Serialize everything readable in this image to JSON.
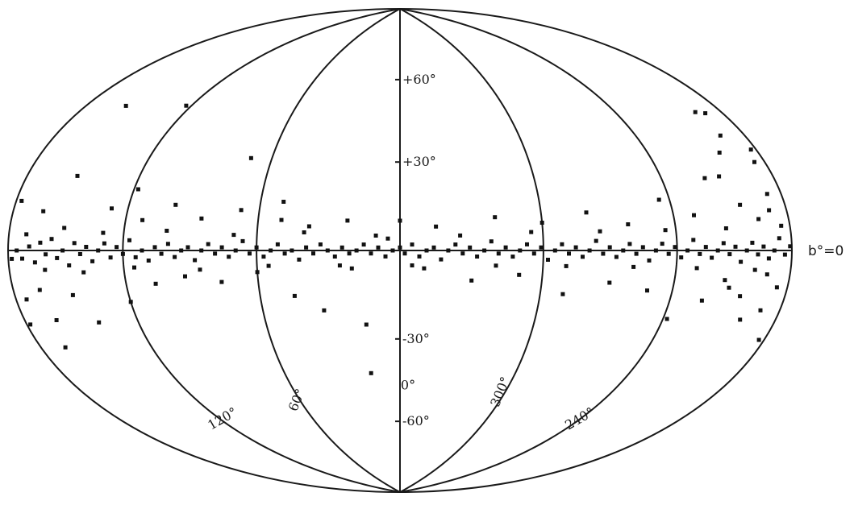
{
  "chart_data": {
    "type": "scatter",
    "projection": "aitoff-hammer",
    "title": "",
    "xlabel": "",
    "ylabel": "",
    "longitude_range": [
      0,
      360
    ],
    "latitude_range": [
      -90,
      90
    ],
    "grid": true,
    "equator_label": "b°=0",
    "latitude_ticks": [
      {
        "value": 60,
        "label": "+60°"
      },
      {
        "value": 30,
        "label": "+30°"
      },
      {
        "value": -30,
        "label": "-30°"
      },
      {
        "value": -60,
        "label": "-60°"
      }
    ],
    "longitude_ticks": [
      {
        "value": 0,
        "label": "0°"
      },
      {
        "value": 60,
        "label": "60°"
      },
      {
        "value": 120,
        "label": "120°"
      },
      {
        "value": 300,
        "label": "300°"
      },
      {
        "value": 240,
        "label": "240°"
      }
    ],
    "point_color": "#111111",
    "points": [
      [
        172,
        -2
      ],
      [
        168,
        1
      ],
      [
        165,
        -3
      ],
      [
        162,
        2
      ],
      [
        159,
        -1
      ],
      [
        156,
        3
      ],
      [
        153,
        -2
      ],
      [
        150,
        0
      ],
      [
        147,
        -4
      ],
      [
        144,
        2
      ],
      [
        141,
        -1
      ],
      [
        138,
        1
      ],
      [
        135,
        -3
      ],
      [
        132,
        0
      ],
      [
        129,
        2
      ],
      [
        126,
        -2
      ],
      [
        123,
        1
      ],
      [
        120,
        -1
      ],
      [
        117,
        3
      ],
      [
        114,
        -2
      ],
      [
        111,
        0
      ],
      [
        108,
        -3
      ],
      [
        105,
        1
      ],
      [
        102,
        -1
      ],
      [
        99,
        2
      ],
      [
        96,
        -2
      ],
      [
        93,
        0
      ],
      [
        90,
        1
      ],
      [
        87,
        -3
      ],
      [
        84,
        0
      ],
      [
        81,
        2
      ],
      [
        78,
        -1
      ],
      [
        75,
        1
      ],
      [
        72,
        -2
      ],
      [
        69,
        0
      ],
      [
        66,
        3
      ],
      [
        63,
        -1
      ],
      [
        60,
        1
      ],
      [
        57,
        -2
      ],
      [
        54,
        0
      ],
      [
        51,
        2
      ],
      [
        48,
        -1
      ],
      [
        45,
        0
      ],
      [
        42,
        -3
      ],
      [
        39,
        1
      ],
      [
        36,
        -1
      ],
      [
        33,
        2
      ],
      [
        30,
        0
      ],
      [
        27,
        -2
      ],
      [
        24,
        1
      ],
      [
        21,
        -1
      ],
      [
        18,
        0
      ],
      [
        15,
        2
      ],
      [
        12,
        -1
      ],
      [
        9,
        1
      ],
      [
        6,
        -2
      ],
      [
        3,
        0
      ],
      [
        0,
        1
      ],
      [
        358,
        -1
      ],
      [
        355,
        2
      ],
      [
        352,
        -2
      ],
      [
        349,
        0
      ],
      [
        346,
        1
      ],
      [
        343,
        -3
      ],
      [
        340,
        0
      ],
      [
        337,
        2
      ],
      [
        334,
        -1
      ],
      [
        331,
        1
      ],
      [
        328,
        -2
      ],
      [
        325,
        0
      ],
      [
        322,
        3
      ],
      [
        319,
        -1
      ],
      [
        316,
        1
      ],
      [
        313,
        -2
      ],
      [
        310,
        0
      ],
      [
        307,
        2
      ],
      [
        304,
        -1
      ],
      [
        301,
        1
      ],
      [
        298,
        -3
      ],
      [
        295,
        0
      ],
      [
        292,
        2
      ],
      [
        289,
        -1
      ],
      [
        286,
        1
      ],
      [
        283,
        -2
      ],
      [
        280,
        0
      ],
      [
        277,
        3
      ],
      [
        274,
        -1
      ],
      [
        271,
        1
      ],
      [
        268,
        -2
      ],
      [
        265,
        0
      ],
      [
        262,
        2
      ],
      [
        259,
        -1
      ],
      [
        256,
        1
      ],
      [
        253,
        -3
      ],
      [
        250,
        0
      ],
      [
        247,
        2
      ],
      [
        244,
        -1
      ],
      [
        241,
        1
      ],
      [
        238,
        -2
      ],
      [
        235,
        0
      ],
      [
        232,
        3
      ],
      [
        229,
        -1
      ],
      [
        226,
        1
      ],
      [
        223,
        -2
      ],
      [
        220,
        0
      ],
      [
        217,
        2
      ],
      [
        214,
        -1
      ],
      [
        211,
        1
      ],
      [
        208,
        -3
      ],
      [
        205,
        0
      ],
      [
        202,
        2
      ],
      [
        199,
        -1
      ],
      [
        196,
        1
      ],
      [
        193,
        -2
      ],
      [
        190,
        0
      ],
      [
        187,
        3
      ],
      [
        184,
        -1
      ],
      [
        181,
        1
      ],
      [
        178,
        -2
      ],
      [
        175,
        0
      ],
      [
        170,
        4
      ],
      [
        160,
        -5
      ],
      [
        150,
        6
      ],
      [
        140,
        -6
      ],
      [
        130,
        5
      ],
      [
        115,
        -5
      ],
      [
        100,
        6
      ],
      [
        85,
        -6
      ],
      [
        70,
        5
      ],
      [
        55,
        -5
      ],
      [
        40,
        6
      ],
      [
        25,
        -5
      ],
      [
        10,
        5
      ],
      [
        350,
        -6
      ],
      [
        335,
        5
      ],
      [
        320,
        -5
      ],
      [
        305,
        6
      ],
      [
        290,
        -5
      ],
      [
        275,
        6
      ],
      [
        260,
        -5
      ],
      [
        245,
        6
      ],
      [
        230,
        -5
      ],
      [
        215,
        6
      ],
      [
        200,
        -5
      ],
      [
        185,
        6
      ],
      [
        163,
        10
      ],
      [
        165,
        -10
      ],
      [
        162,
        -18
      ],
      [
        166,
        -25
      ],
      [
        152,
        20
      ],
      [
        148,
        -12
      ],
      [
        140,
        -20
      ],
      [
        128,
        12
      ],
      [
        120,
        -15
      ],
      [
        118,
        18
      ],
      [
        112,
        9
      ],
      [
        106,
        -10
      ],
      [
        98,
        14
      ],
      [
        92,
        -8
      ],
      [
        85,
        10
      ],
      [
        76,
        -10
      ],
      [
        68,
        13
      ],
      [
        60,
        -7
      ],
      [
        50,
        10
      ],
      [
        45,
        -15
      ],
      [
        38,
        8
      ],
      [
        33,
        -20
      ],
      [
        22,
        10
      ],
      [
        20,
        -6
      ],
      [
        15,
        -25
      ],
      [
        5,
        4
      ],
      [
        355,
        -5
      ],
      [
        345,
        8
      ],
      [
        330,
        -10
      ],
      [
        320,
        11
      ],
      [
        310,
        -8
      ],
      [
        300,
        9
      ],
      [
        290,
        -14
      ],
      [
        280,
        12
      ],
      [
        270,
        -10
      ],
      [
        262,
        8
      ],
      [
        252,
        -12
      ],
      [
        245,
        15
      ],
      [
        238,
        -20
      ],
      [
        230,
        10
      ],
      [
        224,
        -14
      ],
      [
        218,
        20
      ],
      [
        212,
        -10
      ],
      [
        205,
        12
      ],
      [
        200,
        -18
      ],
      [
        194,
        30
      ],
      [
        191,
        -15
      ],
      [
        186,
        22
      ],
      [
        183,
        -22
      ],
      [
        188,
        14
      ],
      [
        186,
        -9
      ],
      [
        190,
        10
      ],
      [
        193,
        -6
      ],
      [
        197,
        8
      ],
      [
        157,
        40
      ],
      [
        123,
        44
      ],
      [
        70,
        30
      ],
      [
        50,
        16
      ],
      [
        15,
        -42
      ],
      [
        0,
        10
      ],
      [
        190,
        36
      ],
      [
        195,
        37
      ],
      [
        183,
        25
      ],
      [
        177,
        12
      ],
      [
        174,
        -12
      ],
      [
        178,
        -18
      ],
      [
        202,
        26
      ],
      [
        205,
        -12
      ],
      [
        210,
        20
      ],
      [
        215,
        -8
      ]
    ]
  }
}
